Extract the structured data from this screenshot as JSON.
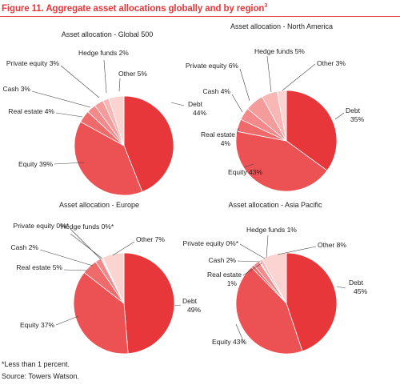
{
  "figure": {
    "title": "Figure 11. Aggregate asset allocations globally and by region",
    "title_superscript": "3",
    "footnote": "*Less than 1 percent.",
    "source": "Source: Towers Watson."
  },
  "colors": {
    "Debt": "#e8373a",
    "Equity": "#ec5154",
    "Real estate": "#ef6a6a",
    "Cash": "#f3898a",
    "Private equity": "#f49c9c",
    "Hedge funds": "#f8b6b5",
    "Other": "#fbd4d2"
  },
  "chart_data": [
    {
      "type": "pie",
      "title": "Asset allocation - Global 500",
      "slices": [
        {
          "category": "Debt",
          "label": "Debt",
          "value_label": "44%",
          "value": 44
        },
        {
          "category": "Equity",
          "label": "Equity 39%",
          "value_label": "",
          "value": 39
        },
        {
          "category": "Real estate",
          "label": "Real estate 4%",
          "value_label": "",
          "value": 4
        },
        {
          "category": "Cash",
          "label": "Cash 3%",
          "value_label": "",
          "value": 3
        },
        {
          "category": "Private equity",
          "label": "Private equity 3%",
          "value_label": "",
          "value": 3
        },
        {
          "category": "Hedge funds",
          "label": "Hedge funds 2%",
          "value_label": "",
          "value": 2
        },
        {
          "category": "Other",
          "label": "Other 5%",
          "value_label": "",
          "value": 5
        }
      ]
    },
    {
      "type": "pie",
      "title": "Asset allocation - North America",
      "slices": [
        {
          "category": "Debt",
          "label": "Debt",
          "value_label": "35%",
          "value": 35
        },
        {
          "category": "Equity",
          "label": "Equity 43%",
          "value_label": "",
          "value": 43
        },
        {
          "category": "Real estate",
          "label": "Real estate",
          "value_label": "4%",
          "value": 4
        },
        {
          "category": "Cash",
          "label": "Cash 4%",
          "value_label": "",
          "value": 4
        },
        {
          "category": "Private equity",
          "label": "Private equity 6%",
          "value_label": "",
          "value": 6
        },
        {
          "category": "Hedge funds",
          "label": "Hedge funds 5%",
          "value_label": "",
          "value": 5
        },
        {
          "category": "Other",
          "label": "Other 3%",
          "value_label": "",
          "value": 3
        }
      ]
    },
    {
      "type": "pie",
      "title": "Asset allocation - Europe",
      "slices": [
        {
          "category": "Debt",
          "label": "Debt",
          "value_label": "49%",
          "value": 49
        },
        {
          "category": "Equity",
          "label": "Equity 37%",
          "value_label": "",
          "value": 37
        },
        {
          "category": "Real estate",
          "label": "Real estate 5%",
          "value_label": "",
          "value": 5
        },
        {
          "category": "Cash",
          "label": "Cash 2%",
          "value_label": "",
          "value": 2
        },
        {
          "category": "Private equity",
          "label": "Private equity 0%*",
          "value_label": "",
          "value": 0.3
        },
        {
          "category": "Hedge funds",
          "label": "Hedge funds 0%*",
          "value_label": "",
          "value": 0.3
        },
        {
          "category": "Other",
          "label": "Other 7%",
          "value_label": "",
          "value": 7
        }
      ]
    },
    {
      "type": "pie",
      "title": "Asset allocation - Asia Pacific",
      "slices": [
        {
          "category": "Debt",
          "label": "Debt",
          "value_label": "45%",
          "value": 45
        },
        {
          "category": "Equity",
          "label": "Equity 43%",
          "value_label": "",
          "value": 43
        },
        {
          "category": "Real estate",
          "label": "Real estate",
          "value_label": "1%",
          "value": 1
        },
        {
          "category": "Cash",
          "label": "Cash 2%",
          "value_label": "",
          "value": 2
        },
        {
          "category": "Private equity",
          "label": "Private equity 0%*",
          "value_label": "",
          "value": 0.3
        },
        {
          "category": "Hedge funds",
          "label": "Hedge funds 1%",
          "value_label": "",
          "value": 1
        },
        {
          "category": "Other",
          "label": "Other 8%",
          "value_label": "",
          "value": 8
        }
      ]
    }
  ]
}
